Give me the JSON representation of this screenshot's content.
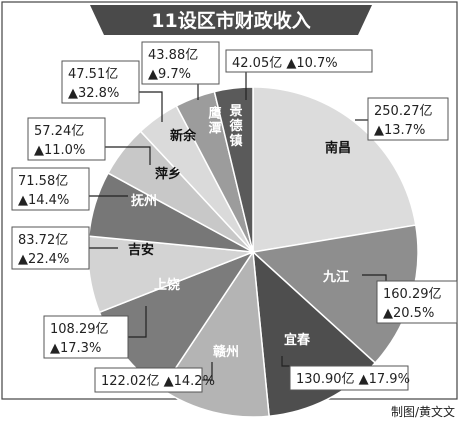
{
  "chart_data": {
    "type": "pie",
    "title": "11设区市财政收入",
    "categories": [
      "南昌",
      "九江",
      "宜春",
      "赣州",
      "上饶",
      "吉安",
      "抚州",
      "萍乡",
      "新余",
      "鹰潭",
      "景德镇"
    ],
    "values": [
      250.27,
      160.29,
      130.9,
      122.02,
      108.29,
      83.72,
      71.58,
      57.24,
      47.51,
      43.88,
      42.05
    ],
    "value_labels": [
      "250.27亿",
      "160.29亿",
      "130.90亿",
      "122.02亿",
      "108.29亿",
      "83.72亿",
      "71.58亿",
      "57.24亿",
      "47.51亿",
      "43.88亿",
      "42.05亿"
    ],
    "growth_labels": [
      "▲13.7%",
      "▲20.5%",
      "▲17.9%",
      "▲14.2%",
      "▲17.3%",
      "▲22.4%",
      "▲14.4%",
      "▲11.0%",
      "▲32.8%",
      "▲9.7%",
      "▲10.7%"
    ],
    "slice_colors": [
      "#dcdcdc",
      "#8e8e8e",
      "#4e4e4e",
      "#b4b4b4",
      "#7c7c7c",
      "#d3d3d3",
      "#777777",
      "#c8c8c8",
      "#dadada",
      "#9c9c9c",
      "#5a5a5a"
    ],
    "label_colors": [
      "#111111",
      "#ffffff",
      "#ffffff",
      "#ffffff",
      "#ffffff",
      "#111111",
      "#ffffff",
      "#111111",
      "#111111",
      "#ffffff",
      "#ffffff"
    ],
    "credit": "制图/黄文文"
  }
}
